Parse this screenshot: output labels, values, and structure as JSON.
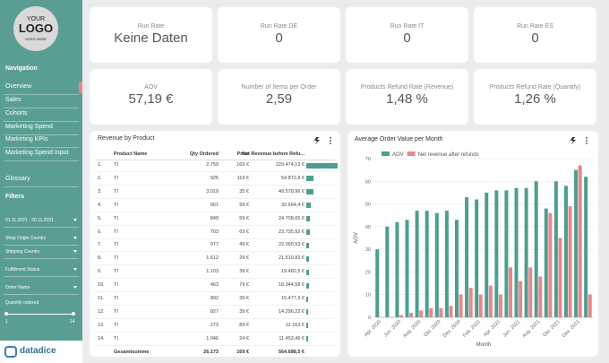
{
  "logo": {
    "line1": "YOUR",
    "line2": "LOGO",
    "line3": "GOES HERE"
  },
  "sidebar": {
    "navigation_title": "Navigation",
    "nav_items": [
      "Overview",
      "Sales",
      "Cohorts",
      "Marketing Spend",
      "Marketing KPIs",
      "Marketing Spend Input",
      "Glossary"
    ],
    "filters_title": "Filters",
    "filters": [
      "01.11.2021 - 30.11.2021",
      "Shop Origin Country",
      "Shipping Country",
      "Fulfillment Status",
      "Order Name"
    ],
    "slider": {
      "label": "Quantity ordered",
      "min": "1",
      "max": "14"
    },
    "brand": "datadice"
  },
  "kpis": [
    {
      "label": "Run Rate",
      "value": "Keine Daten"
    },
    {
      "label": "Run Rate DE",
      "value": "0"
    },
    {
      "label": "Run Rate IT",
      "value": "0"
    },
    {
      "label": "Run Rate ES",
      "value": "0"
    },
    {
      "label": "AOV",
      "value": "57,19 €"
    },
    {
      "label": "Number of Items per Order",
      "value": "2,59"
    },
    {
      "label": "Products Refund Rate (Revenue)",
      "value": "1,48 %"
    },
    {
      "label": "Products Refund Rate (Quantity)",
      "value": "1,26 %"
    }
  ],
  "table": {
    "title": "Revenue by Product",
    "columns": [
      "Product Name",
      "Qty Ordered",
      "Price",
      "Net Revenue before Refu..."
    ],
    "rows": [
      [
        "1.",
        "TI",
        "2.759",
        "169 €",
        "229.474,13 €"
      ],
      [
        "2.",
        "TI",
        "925",
        "119 €",
        "54.872,8 €"
      ],
      [
        "3.",
        "TI",
        "3.019",
        "35 €",
        "49.578,96 €"
      ],
      [
        "4.",
        "TI",
        "661",
        "99 €",
        "32.664,4 €"
      ],
      [
        "5.",
        "TI",
        "849",
        "59 €",
        "24.708,65 €"
      ],
      [
        "6.",
        "TI",
        "703",
        "69 €",
        "23.735,92 €"
      ],
      [
        "7.",
        "TI",
        "977",
        "49 €",
        "22.090,53 €"
      ],
      [
        "8.",
        "TI",
        "1.612",
        "29 €",
        "21.510,82 €"
      ],
      [
        "9.",
        "TI",
        "1.103",
        "39 €",
        "19.482,5 €"
      ],
      [
        "10.",
        "TI",
        "463",
        "79 €",
        "18.344,58 €"
      ],
      [
        "11.",
        "TI",
        "892",
        "39 €",
        "15.477,9 €"
      ],
      [
        "12.",
        "TI",
        "827",
        "39 €",
        "14.296,22 €"
      ],
      [
        "13.",
        "TI",
        "273",
        "89 €",
        "12.163 €"
      ],
      [
        "14.",
        "TI",
        "1.046",
        "24 €",
        "11.452,46 €"
      ]
    ],
    "total": [
      "Gesamtsumme",
      "26.173",
      "169 €",
      "564.688,5 €"
    ]
  },
  "chart_data": {
    "type": "bar",
    "title": "Average Order Value per Month",
    "x_label": "Month",
    "y_label": "AOV",
    "categories": [
      "Apr. 2020",
      null,
      "Jun. 2020",
      null,
      "Aug. 2020",
      null,
      "Okt. 2020",
      null,
      "Dez. 2020",
      null,
      "Feb. 2021",
      null,
      "Apr. 2021",
      null,
      "Jun. 2021",
      null,
      "Aug. 2021",
      null,
      "Okt. 2021",
      null,
      "Dez. 2021",
      null
    ],
    "series": [
      {
        "name": "AOV",
        "color": "#4e9e8f",
        "values": [
          30,
          40,
          42,
          43,
          47,
          47,
          46,
          47,
          43,
          53,
          52,
          55,
          56,
          56,
          57,
          57,
          60,
          48,
          60,
          58,
          65,
          62
        ]
      },
      {
        "name": "Net revenue after refunds",
        "color": "#e8868a",
        "values": [
          0,
          0,
          1,
          2,
          3,
          4,
          4,
          5,
          10,
          13,
          10,
          14,
          10,
          22,
          16,
          22,
          18,
          46,
          35,
          49,
          67,
          10
        ]
      }
    ],
    "ylim": [
      0,
      70
    ],
    "yticks": [
      0,
      10,
      20,
      30,
      40,
      50,
      60,
      70
    ],
    "grid": true,
    "legend": "top"
  }
}
